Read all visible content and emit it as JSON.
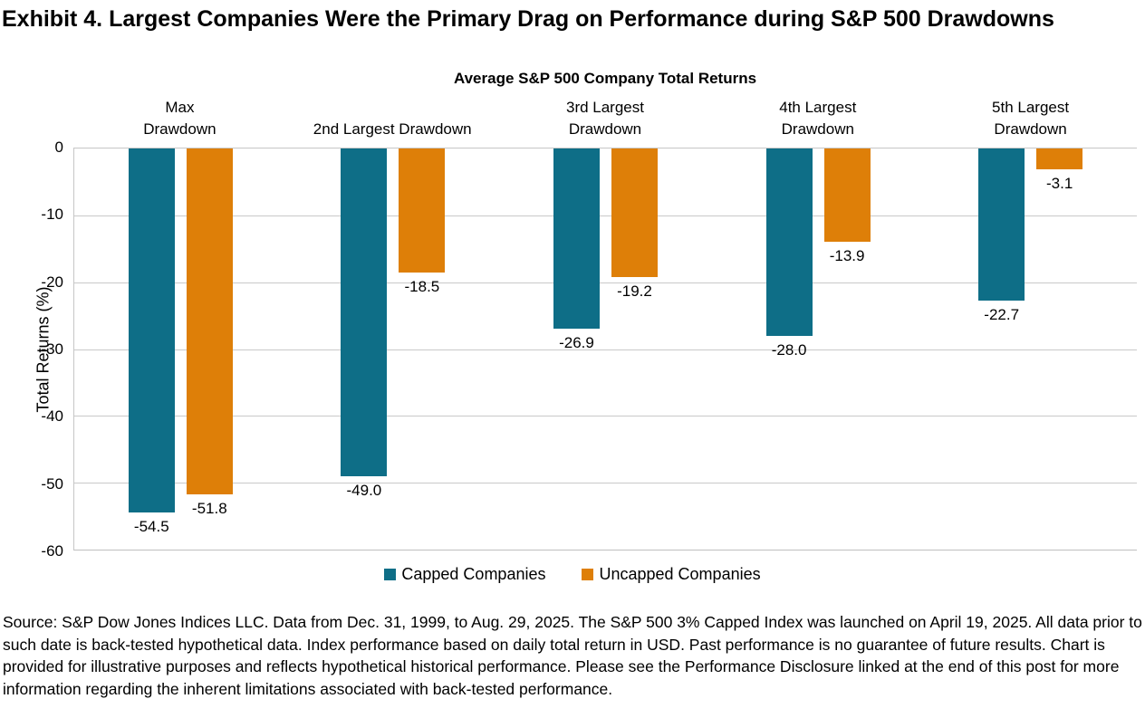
{
  "title": "Exhibit 4. Largest Companies Were the Primary Drag on Performance during S&P 500 Drawdowns",
  "chart_data": {
    "type": "bar",
    "title": "Average S&P 500 Company Total Returns",
    "xlabel": "",
    "ylabel": "Total Returns (%)",
    "ylim": [
      -60,
      0
    ],
    "yticks": [
      0,
      -10,
      -20,
      -30,
      -40,
      -50,
      -60
    ],
    "grid": true,
    "legend_position": "bottom",
    "value_labels_decimals": 1,
    "categories": [
      "Max\nDrawdown",
      "2nd Largest Drawdown",
      "3rd Largest\nDrawdown",
      "4th Largest\nDrawdown",
      "5th Largest\nDrawdown"
    ],
    "series": [
      {
        "name": "Capped Companies",
        "color": "#0e6e87",
        "values": [
          -54.5,
          -49.0,
          -26.9,
          -28.0,
          -22.7
        ]
      },
      {
        "name": "Uncapped Companies",
        "color": "#de7f08",
        "values": [
          -51.8,
          -18.5,
          -19.2,
          -13.9,
          -3.1
        ]
      }
    ]
  },
  "footer": "Source: S&P Dow Jones Indices LLC. Data from Dec. 31, 1999, to Aug. 29, 2025. The S&P 500 3% Capped Index was launched on April 19, 2025. All data prior to such date is back-tested hypothetical data. Index performance based on daily total return in USD. Past performance is no guarantee of future results. Chart is provided for illustrative purposes and reflects hypothetical historical performance. Please see the Performance Disclosure linked at the end of this post for more information regarding the inherent limitations associated with back-tested performance."
}
